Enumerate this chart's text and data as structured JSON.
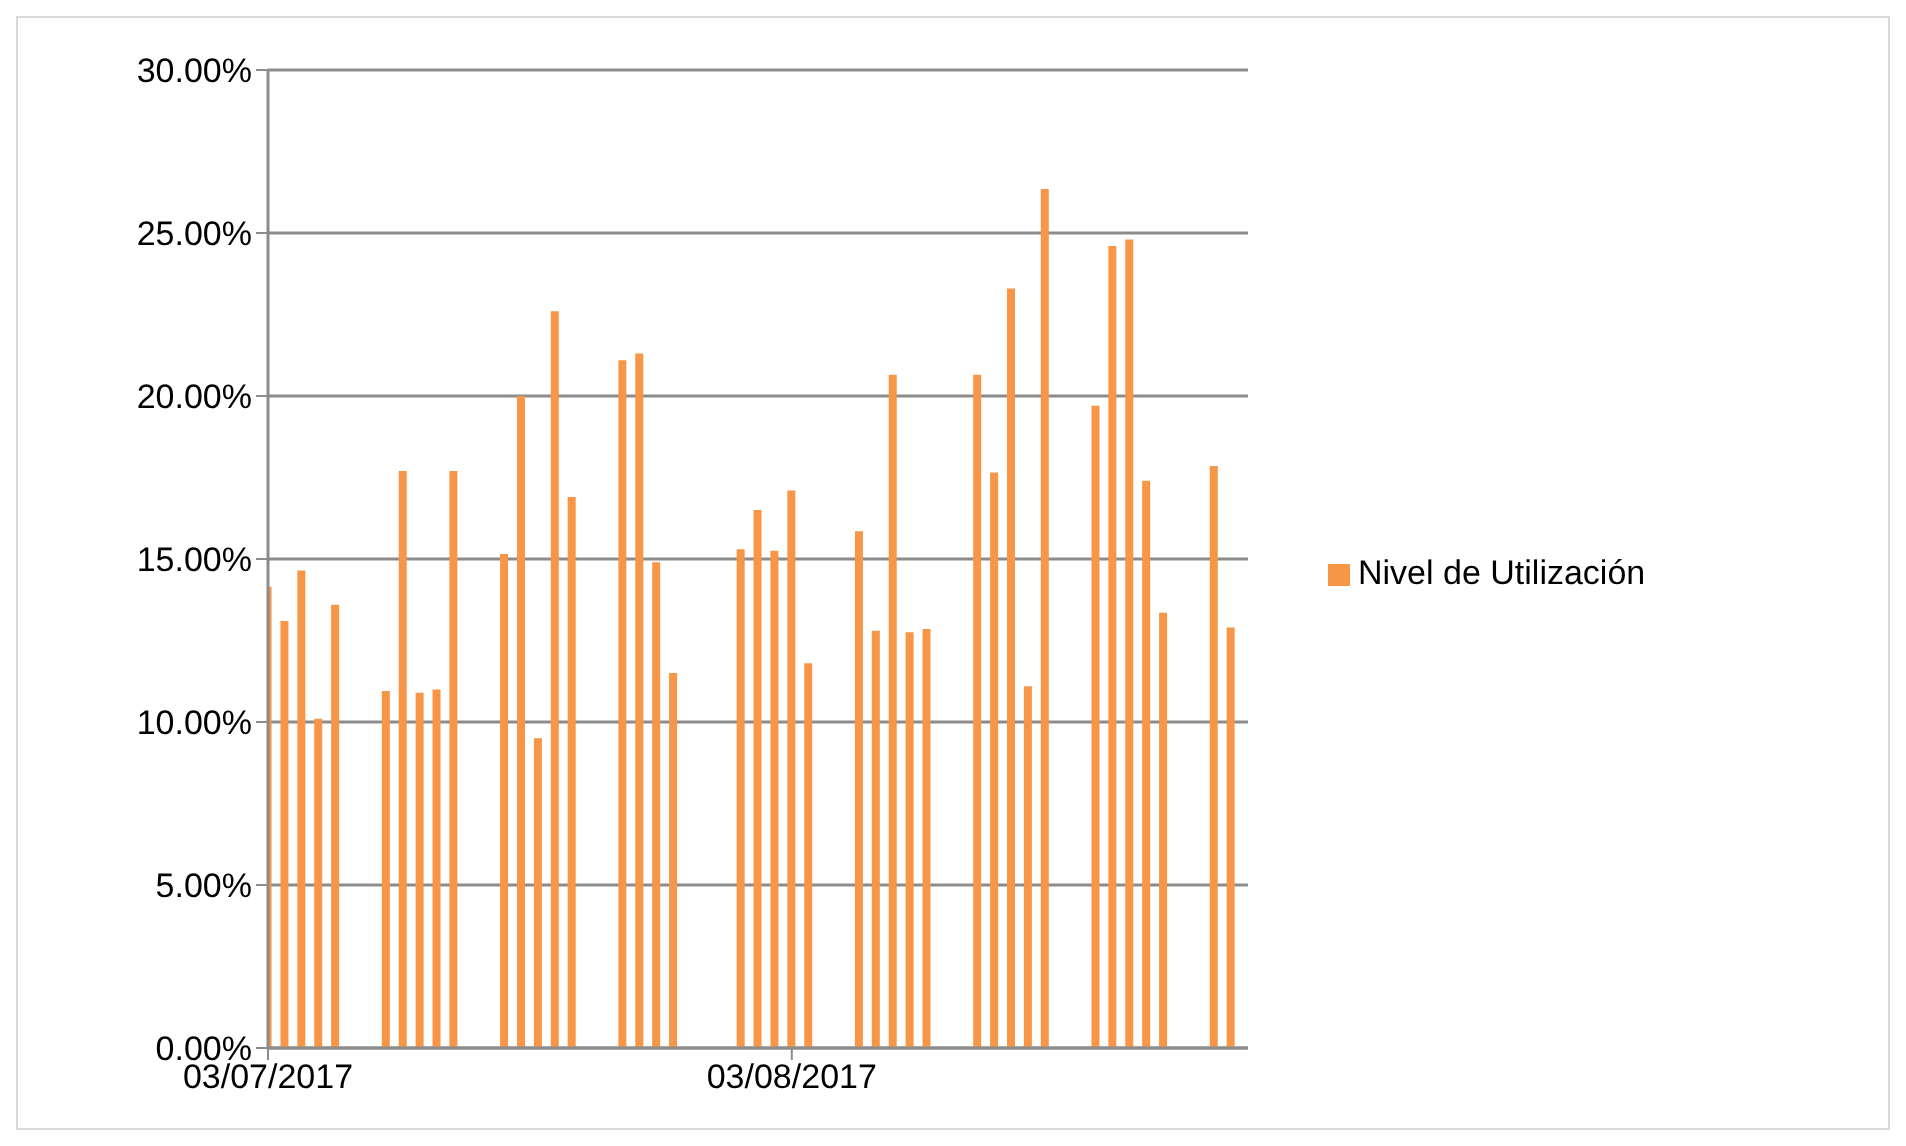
{
  "chart_data": {
    "type": "bar",
    "x": [
      "2017-07-03",
      "2017-07-04",
      "2017-07-05",
      "2017-07-06",
      "2017-07-07",
      "2017-07-10",
      "2017-07-11",
      "2017-07-12",
      "2017-07-13",
      "2017-07-14",
      "2017-07-17",
      "2017-07-18",
      "2017-07-19",
      "2017-07-20",
      "2017-07-21",
      "2017-07-24",
      "2017-07-25",
      "2017-07-26",
      "2017-07-27",
      "2017-07-31",
      "2017-08-01",
      "2017-08-02",
      "2017-08-03",
      "2017-08-04",
      "2017-08-07",
      "2017-08-08",
      "2017-08-09",
      "2017-08-10",
      "2017-08-11",
      "2017-08-14",
      "2017-08-15",
      "2017-08-16",
      "2017-08-17",
      "2017-08-18",
      "2017-08-21",
      "2017-08-22",
      "2017-08-23",
      "2017-08-24",
      "2017-08-25",
      "2017-08-28",
      "2017-08-29"
    ],
    "series": [
      {
        "name": "Nivel de Utilización",
        "color": "#f79646",
        "values": [
          14.15,
          13.1,
          14.65,
          10.1,
          13.6,
          10.95,
          17.7,
          10.9,
          11.0,
          17.7,
          15.15,
          20.0,
          9.5,
          22.6,
          16.9,
          21.1,
          21.3,
          14.9,
          11.5,
          15.3,
          16.5,
          15.25,
          17.1,
          11.8,
          15.85,
          12.8,
          20.65,
          12.75,
          12.85,
          20.65,
          17.65,
          23.3,
          11.1,
          26.35,
          19.7,
          24.6,
          24.8,
          17.4,
          13.35,
          17.85,
          12.9
        ]
      }
    ],
    "xlim": [
      "2017-07-03",
      "2017-08-30"
    ],
    "xticks": [
      {
        "value": "2017-07-03",
        "label": "03/07/2017"
      },
      {
        "value": "2017-08-03",
        "label": "03/08/2017"
      }
    ],
    "ylim": [
      0,
      30
    ],
    "yticks": [
      {
        "value": 0,
        "label": "0.00%"
      },
      {
        "value": 5,
        "label": "5.00%"
      },
      {
        "value": 10,
        "label": "10.00%"
      },
      {
        "value": 15,
        "label": "15.00%"
      },
      {
        "value": 20,
        "label": "20.00%"
      },
      {
        "value": 25,
        "label": "25.00%"
      },
      {
        "value": 30,
        "label": "30.00%"
      }
    ],
    "grid": "y",
    "legend": "right"
  }
}
